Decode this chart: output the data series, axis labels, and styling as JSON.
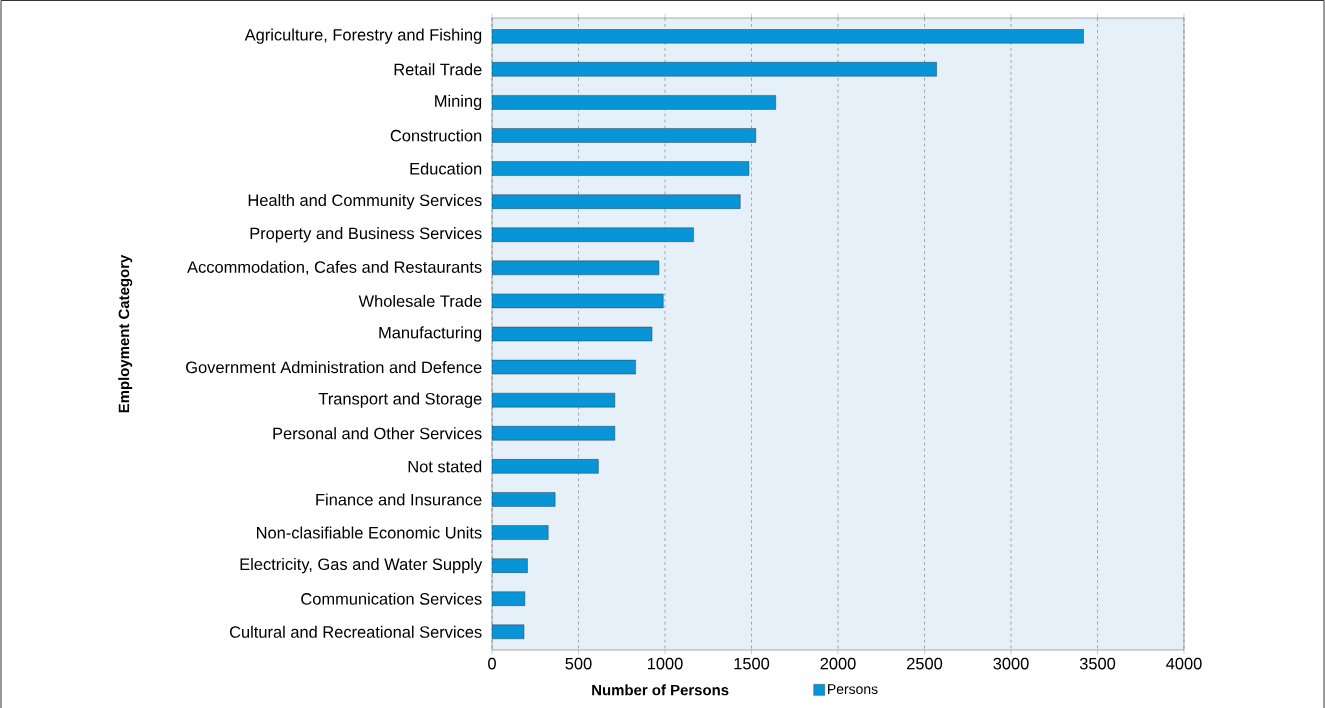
{
  "chart_data": {
    "type": "bar",
    "orientation": "horizontal",
    "xlabel": "Number of Persons",
    "ylabel": "Employment Category",
    "categories": [
      "Agriculture, Forestry and Fishing",
      "Retail Trade",
      "Mining",
      "Construction",
      "Education",
      "Health and Community Services",
      "Property and Business Services",
      "Accommodation, Cafes and Restaurants",
      "Wholesale Trade",
      "Manufacturing",
      "Government Administration and Defence",
      "Transport and Storage",
      "Personal and Other Services",
      "Not stated",
      "Finance and Insurance",
      "Non-clasifiable Economic Units",
      "Electricity, Gas and Water Supply",
      "Communication Services",
      "Cultural and Recreational Services"
    ],
    "series": [
      {
        "name": "Persons",
        "color": "#0795d8",
        "values": [
          3420,
          2570,
          1640,
          1525,
          1485,
          1435,
          1165,
          965,
          990,
          925,
          830,
          710,
          710,
          615,
          365,
          325,
          205,
          190,
          185
        ]
      }
    ],
    "xlim": [
      0,
      4000
    ],
    "xticks": [
      0,
      500,
      1000,
      1500,
      2000,
      2500,
      3000,
      3500,
      4000
    ],
    "grid": "x",
    "legend": "bottom"
  }
}
